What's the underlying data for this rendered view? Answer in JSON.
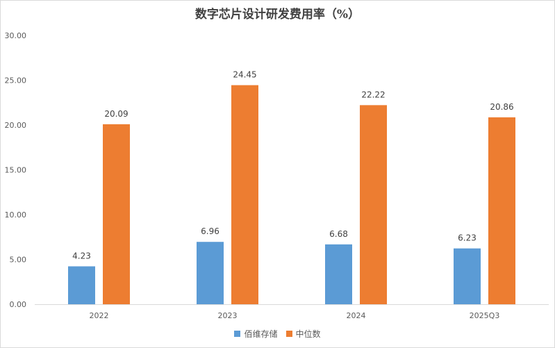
{
  "chart_data": {
    "type": "bar",
    "title": "数字芯片设计研发费用率（%）",
    "categories": [
      "2022",
      "2023",
      "2024",
      "2025Q3"
    ],
    "series": [
      {
        "name": "佰维存储",
        "values": [
          4.23,
          6.96,
          6.68,
          6.23
        ],
        "color": "#5b9bd5"
      },
      {
        "name": "中位数",
        "values": [
          20.09,
          24.45,
          22.22,
          20.86
        ],
        "color": "#ed7d31"
      }
    ],
    "ylim": [
      0,
      30
    ],
    "yticks": [
      "0.00",
      "5.00",
      "10.00",
      "15.00",
      "20.00",
      "25.00",
      "30.00"
    ],
    "grid": false,
    "legend": "bottom"
  }
}
